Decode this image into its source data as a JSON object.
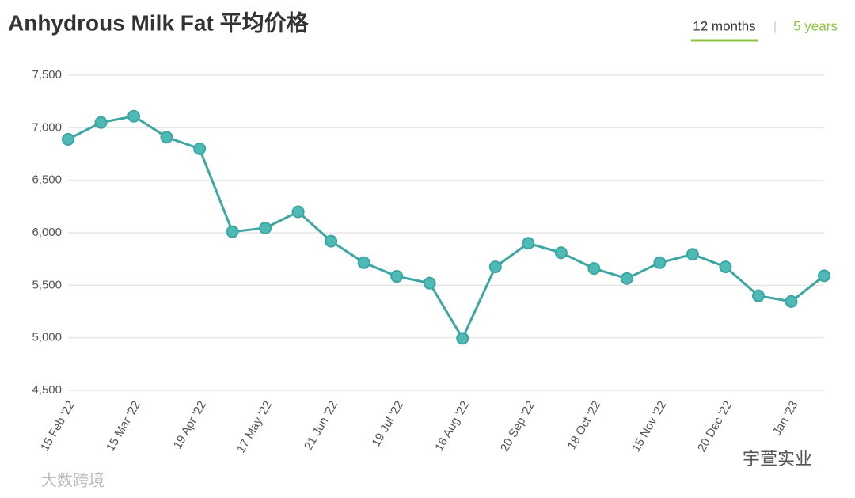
{
  "chart_data": {
    "type": "line",
    "title": "Anhydrous Milk Fat 平均价格",
    "categories": [
      "15 Feb '22",
      null,
      "15 Mar '22",
      null,
      "19 Apr '22",
      null,
      "17 May '22",
      null,
      "21 Jun '22",
      null,
      "19 Jul '22",
      null,
      "16 Aug '22",
      null,
      "20 Sep '22",
      null,
      "18 Oct '22",
      null,
      "15 Nov '22",
      null,
      "20 Dec '22",
      null,
      "Jan '23",
      null
    ],
    "values": [
      6890,
      7050,
      7110,
      6910,
      6800,
      6010,
      6045,
      6200,
      5920,
      5715,
      5585,
      5520,
      4995,
      5675,
      5900,
      5810,
      5660,
      5565,
      5715,
      5795,
      5675,
      5400,
      5345,
      5590
    ],
    "color": "#3da6a2",
    "ylim": [
      4500,
      7500
    ],
    "yticks": [
      {
        "value": 4500,
        "label": "4,500"
      },
      {
        "value": 5000,
        "label": "5,000"
      },
      {
        "value": 5500,
        "label": "5,500"
      },
      {
        "value": 6000,
        "label": "6,000"
      },
      {
        "value": 6500,
        "label": "6,500"
      },
      {
        "value": 7000,
        "label": "7,000"
      },
      {
        "value": 7500,
        "label": "7,500"
      }
    ],
    "grid": true
  },
  "tabs": [
    "12 months",
    "5 years"
  ],
  "watermarks": [
    "大数跨境",
    "宇萱实业"
  ]
}
